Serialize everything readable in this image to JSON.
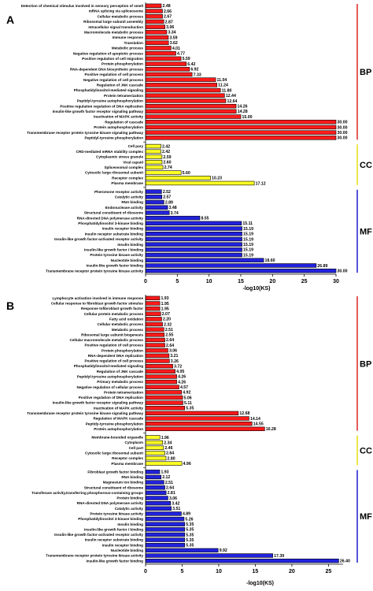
{
  "chart_data": [
    {
      "panel": "A",
      "type": "bar",
      "orientation": "horizontal",
      "xlabel": "-log10(KS)",
      "xlim": [
        0,
        30
      ],
      "xticks": [
        0,
        5,
        10,
        15,
        20,
        25,
        30
      ],
      "groups": [
        {
          "label": "BP",
          "color": "#ff1a1a",
          "bracket_color": "#e03030",
          "categories": [
            "Detection of chemical stimulus involved in sensory perception of smell",
            "mRNA splicing via spliceosome",
            "Cellular metabolic process",
            "Ribosomal large subunit assembly",
            "Intracellular signal transduction",
            "Macromolecule metabolic process",
            "Immune response",
            "Translation",
            "Metabolic process",
            "Negative regulation of apoptotic process",
            "Positive regulation of cell migration",
            "Protein phosphorylation",
            "RNA-dependent DNA biosynthetic process",
            "Positive regulation of cell process",
            "Negative regulation of cell process",
            "Regulation of JNK cascade",
            "Phosphatidylinositol-mediated signaling",
            "Protein tetramerization",
            "Peptidyl-tyrosine autophosphorylation",
            "Positive regulation regulation of DNA replication",
            "Insulin-like growth factor receptor signaling pathway",
            "Inactivation of MAPK activity",
            "Regulation of cascade",
            "Protein autophosphorylation",
            "Transmembrane receptor protein tyrosine kinase signaling pathway",
            "Peptidyl-tyrosine phosphorylation"
          ],
          "values": [
            2.48,
            2.66,
            2.67,
            2.87,
            3.06,
            3.34,
            3.59,
            3.62,
            4.01,
            4.77,
            5.59,
            6.42,
            6.92,
            7.33,
            11.04,
            11.24,
            11.8,
            12.44,
            12.64,
            14.26,
            14.28,
            15.0,
            30.0,
            30.0,
            30.0,
            30.0
          ],
          "labels": [
            "2.48",
            "2.66",
            "2.67",
            "2.87",
            "3.06",
            "3.34",
            "3.59",
            "3.62",
            "4.01",
            "4.77",
            "5.59",
            "6.42",
            "6.92",
            "7.33",
            "11.04",
            "11.24",
            "11.80",
            "12.44",
            "12.64",
            "14.26",
            "14.28",
            "15.00",
            "30.00",
            "30.00",
            "30.00",
            "30.00"
          ]
        },
        {
          "label": "CC",
          "color": "#ffff22",
          "bracket_color": "#e8e020",
          "categories": [
            "Cell pary",
            "CRD-mediated mRNA stability complex",
            "Cytoplasmic stress granule",
            "Viral capsid",
            "Spliceosomal complex",
            "Cytosolic large ribosomal subunit",
            "Receptor complex",
            "Plasma membrane"
          ],
          "values": [
            2.42,
            2.42,
            2.59,
            2.6,
            2.74,
            5.6,
            10.23,
            17.12
          ],
          "labels": [
            "2.42",
            "2.42",
            "2.59",
            "2.60",
            "2.74",
            "5.60",
            "10.23",
            "17.12"
          ]
        },
        {
          "label": "MF",
          "color": "#2222dd",
          "bracket_color": "#2a2ad0",
          "categories": [
            "Pheromone receptor activity",
            "Catalytic activity",
            "RNA binding",
            "Endonuclease activity",
            "Structural constituent of ribosome",
            "RNA-directed DNA polymerase activity",
            "Phosphatidylinositol 3-kinase binding",
            "Insulin receptor binding",
            "Insulin receptor substrate binding",
            "Insulin-like growth factor-activated receptor activity",
            "Insulin binding",
            "Insulin-like growth factor I binding",
            "Protein tyrosine kinase activity",
            "Nucleotide binding",
            "Insulin-like growth factor binding",
            "Transmembrane receptor protein tyrosine kinase activity"
          ],
          "values": [
            2.52,
            2.57,
            2.89,
            3.48,
            3.74,
            8.55,
            15.11,
            15.19,
            15.19,
            15.19,
            15.19,
            15.19,
            15.19,
            18.6,
            26.89,
            30.0
          ],
          "labels": [
            "2.52",
            "2.57",
            "2.89",
            "3.48",
            "3.74",
            "8.55",
            "15.11",
            "15.19",
            "15.19",
            "15.19",
            "15.19",
            "15.19",
            "15.19",
            "18.60",
            "26.89",
            "30.00"
          ]
        }
      ]
    },
    {
      "panel": "B",
      "type": "bar",
      "orientation": "horizontal",
      "xlabel": "-log10(KS)",
      "xlim": [
        0,
        27
      ],
      "xticks": [
        0,
        5,
        10,
        15,
        20,
        25
      ],
      "groups": [
        {
          "label": "BP",
          "color": "#ff1a1a",
          "bracket_color": "#e03030",
          "categories": [
            "Lymphocyte activation involved in immune response",
            "Cellular response to fibroblast growth factor stimulus",
            "Response tofibroblast growth factor",
            "Cellular protein metabolic process",
            "Fatty acid oxidation",
            "Cellular metabolic process",
            "Metabolic process",
            "Ribosomal large subunit biogenesis",
            "Cellular macromolecule metabolic process",
            "Positive regulation of cell process",
            "Protein phosphorylation",
            "RNA-dependent DNA replication",
            "Positive regulation of cell process",
            "Phosphatidylinositol-mediated signaling",
            "Regulation of JNK cascade",
            "Peptidyl-tyrosine autophosphorylation",
            "Primary metabolic process",
            "Negative regulation of cellular process",
            "Protein tetramerization",
            "Positive regulation of DNA replication",
            "Insulin-like growth factor receptor signaling pathway",
            "Inactivation of MAPK activity",
            "Transmembrane receptor protein tyrosine kinase signaling pathway",
            "Regulation of MAPK cascade",
            "Peptidy-tyrosine phosphorylation",
            "Protein autophosphorylation"
          ],
          "values": [
            1.93,
            1.95,
            1.95,
            2.07,
            2.2,
            2.32,
            2.51,
            2.55,
            2.64,
            2.64,
            3.06,
            3.21,
            3.26,
            3.72,
            4.05,
            4.26,
            4.26,
            4.57,
            4.92,
            5.06,
            5.11,
            5.35,
            12.68,
            14.14,
            14.55,
            16.28
          ],
          "labels": [
            "1.93",
            "1.95",
            "1.95",
            "2.07",
            "2.20",
            "2.32",
            "2.51",
            "2.55",
            "2.64",
            "2.64",
            "3.06",
            "3.21",
            "3.26",
            "3.72",
            "4.05",
            "4.26",
            "4.26",
            "4.57",
            "4.92",
            "5.06",
            "5.11",
            "5.35",
            "12.68",
            "14.14",
            "14.55",
            "16.28"
          ]
        },
        {
          "label": "CC",
          "color": "#ffff22",
          "bracket_color": "#e8e020",
          "categories": [
            "Membrane-bounded organelle",
            "Cytoplasm",
            "Cell part",
            "Cytosolic large ribosomal subunit",
            "Receptor complex",
            "Plasma membrane"
          ],
          "values": [
            1.96,
            2.34,
            2.46,
            2.64,
            2.8,
            4.96
          ],
          "labels": [
            "1.96",
            "2.34",
            "2.46",
            "2.64",
            "2.80",
            "4.96"
          ]
        },
        {
          "label": "MF",
          "color": "#2222dd",
          "bracket_color": "#2a2ad0",
          "categories": [
            "Fibroblast growth factor binding",
            "RNA binding",
            "Magnesium ion binding",
            "Structural constituent of ribosome",
            "Transferase activity,transferring phosphorous-containing groups",
            "Protein binding",
            "RNA-directed DNA polymerase activity",
            "Catalytic activity",
            "Protein tyrosine kinase activity",
            "Phosphatidylinositol 3-kinase binding",
            "Insulin binding",
            "Insulin-like growth factor I binding",
            "Insulin-like growth factor-activated receptor activity",
            "Insulin receptor substrate binding",
            "Insulin receptor binding",
            "Nucleotide binding",
            "Transmembrane receptor protein tyrosine kinase activity",
            "Insulin-like growth factor binding"
          ],
          "values": [
            1.93,
            2.12,
            2.51,
            2.64,
            2.81,
            3.06,
            3.42,
            3.51,
            4.89,
            5.26,
            5.35,
            5.35,
            5.35,
            5.35,
            5.35,
            9.92,
            17.39,
            26.4
          ],
          "labels": [
            "1.93",
            "2.12",
            "2.51",
            "2.64",
            "2.81",
            "3.06",
            "3.42",
            "3.51",
            "4.89",
            "5.26",
            "5.35",
            "5.35",
            "5.35",
            "5.35",
            "5.35",
            "9.92",
            "17.39",
            "26.40"
          ]
        }
      ]
    }
  ]
}
